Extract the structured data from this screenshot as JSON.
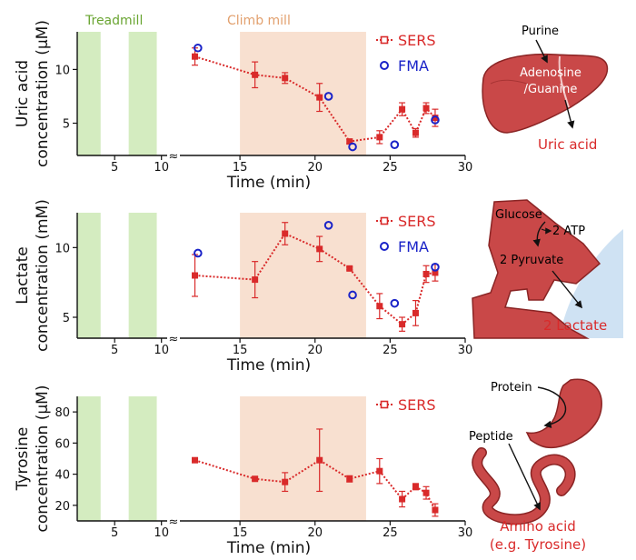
{
  "colors": {
    "sers": "#d92a2a",
    "fma": "#1a23c8",
    "treadmill": "#d4ecc0",
    "climb": "#f8e0d0",
    "treadmill_label": "#6aa532",
    "climb_label": "#e2a06e",
    "organ": "#c94848",
    "organ_dark": "#8a2424",
    "axis": "#111111"
  },
  "phase_labels": {
    "treadmill": "Treadmill",
    "climb": "Climb mill"
  },
  "legend": {
    "sers": "SERS",
    "fma": "FMA"
  },
  "xlabel": "Time (min)",
  "break_symbol": "≈",
  "chart_data": [
    {
      "type": "scatter",
      "ylabel_line1": "Uric acid",
      "ylabel_line2": "concentration (μM)",
      "xlabel": "Time (min)",
      "xlim": [
        1,
        30
      ],
      "ylim": [
        2,
        13.5
      ],
      "xticks": [
        5,
        10,
        15,
        20,
        25,
        30
      ],
      "yticks": [
        5,
        10
      ],
      "treadmill_bands": [
        [
          1,
          3.5
        ],
        [
          6.5,
          9.5
        ]
      ],
      "climb_band": [
        15,
        23.4
      ],
      "series": [
        {
          "name": "SERS",
          "x": [
            12,
            16,
            18,
            20.3,
            22.3,
            24.3,
            25.8,
            26.7,
            27.4,
            28
          ],
          "y": [
            11.2,
            9.5,
            9.2,
            7.4,
            3.3,
            3.7,
            6.3,
            4.1,
            6.4,
            5.5
          ],
          "err": [
            0.8,
            1.2,
            0.5,
            1.3,
            0.2,
            0.6,
            0.6,
            0.4,
            0.5,
            0.8
          ]
        },
        {
          "name": "FMA",
          "x": [
            12.2,
            20.9,
            22.5,
            25.3,
            28
          ],
          "y": [
            12,
            7.5,
            2.8,
            3,
            5.3
          ]
        }
      ]
    },
    {
      "type": "scatter",
      "ylabel_line1": "Lactate",
      "ylabel_line2": "concentration (mM)",
      "xlabel": "Time (min)",
      "xlim": [
        1,
        30
      ],
      "ylim": [
        3.5,
        12.5
      ],
      "xticks": [
        5,
        10,
        15,
        20,
        25,
        30
      ],
      "yticks": [
        5,
        10
      ],
      "treadmill_bands": [
        [
          1,
          3.5
        ],
        [
          6.5,
          9.5
        ]
      ],
      "climb_band": [
        15,
        23.4
      ],
      "series": [
        {
          "name": "SERS",
          "x": [
            12,
            16,
            18,
            20.3,
            22.3,
            24.3,
            25.8,
            26.7,
            27.4,
            28
          ],
          "y": [
            8,
            7.7,
            11,
            9.9,
            8.5,
            5.8,
            4.5,
            5.3,
            8.1,
            8.2
          ],
          "err": [
            1.5,
            1.3,
            0.8,
            0.9,
            0.1,
            0.9,
            0.5,
            0.9,
            0.6,
            0.6
          ]
        },
        {
          "name": "FMA",
          "x": [
            12.2,
            20.9,
            22.5,
            25.3,
            28
          ],
          "y": [
            9.6,
            11.6,
            6.6,
            6,
            8.6
          ]
        }
      ]
    },
    {
      "type": "scatter",
      "ylabel_line1": "Tyrosine",
      "ylabel_line2": "concentration (μM)",
      "xlabel": "Time (min)",
      "xlim": [
        1,
        30
      ],
      "ylim": [
        10,
        90
      ],
      "xticks": [
        5,
        10,
        15,
        20,
        25,
        30
      ],
      "yticks": [
        20,
        40,
        60,
        80
      ],
      "treadmill_bands": [
        [
          1,
          3.5
        ],
        [
          6.5,
          9.5
        ]
      ],
      "climb_band": [
        15,
        23.4
      ],
      "series": [
        {
          "name": "SERS",
          "x": [
            12,
            16,
            18,
            20.3,
            22.3,
            24.3,
            25.8,
            26.7,
            27.4,
            28
          ],
          "y": [
            49,
            37,
            35,
            49,
            37,
            42,
            24,
            32,
            28,
            17
          ],
          "err": [
            1,
            1,
            6,
            20,
            2,
            8,
            5,
            2,
            4,
            4
          ]
        }
      ]
    }
  ],
  "illustrations": {
    "liver": {
      "purine": "Purine",
      "adenosine": "Adenosine",
      "guanine": "/Guanine",
      "product": "Uric acid"
    },
    "muscle": {
      "glucose": "Glucose",
      "atp": "2 ATP",
      "pyruvate": "2 Pyruvate",
      "product": "2 Lactate"
    },
    "gut": {
      "protein": "Protein",
      "peptide": "Peptide",
      "product_line1": "Amino acid",
      "product_line2": "(e.g. Tyrosine)"
    }
  }
}
